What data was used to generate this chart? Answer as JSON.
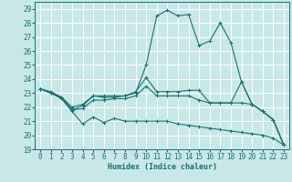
{
  "xlabel": "Humidex (Indice chaleur)",
  "xlim": [
    -0.5,
    23.5
  ],
  "ylim": [
    19,
    29.5
  ],
  "yticks": [
    19,
    20,
    21,
    22,
    23,
    24,
    25,
    26,
    27,
    28,
    29
  ],
  "xticks": [
    0,
    1,
    2,
    3,
    4,
    5,
    6,
    7,
    8,
    9,
    10,
    11,
    12,
    13,
    14,
    15,
    16,
    17,
    18,
    19,
    20,
    21,
    22,
    23
  ],
  "bg_color": "#c8e8e8",
  "grid_color": "#ffffff",
  "line_color": "#1a7070",
  "line_width": 0.8,
  "marker": "+",
  "marker_size": 3,
  "lines": [
    {
      "x": [
        0,
        1,
        2,
        3,
        4,
        5,
        6,
        7,
        8,
        9,
        10,
        11,
        12,
        13,
        14,
        15,
        16,
        17,
        18,
        19,
        20,
        21,
        22,
        23
      ],
      "y": [
        23.3,
        23.1,
        22.7,
        21.8,
        22.1,
        22.8,
        22.8,
        22.8,
        22.8,
        23.0,
        25.0,
        28.5,
        28.9,
        28.5,
        28.6,
        26.4,
        26.7,
        28.0,
        26.6,
        23.8,
        22.2,
        21.7,
        21.1,
        19.3
      ]
    },
    {
      "x": [
        0,
        1,
        2,
        3,
        4,
        5,
        6,
        7,
        8,
        9,
        10,
        11,
        12,
        13,
        14,
        15,
        16,
        17,
        18,
        19,
        20,
        21,
        22,
        23
      ],
      "y": [
        23.3,
        23.0,
        22.7,
        22.0,
        22.2,
        22.8,
        22.7,
        22.7,
        22.8,
        23.1,
        24.1,
        23.1,
        23.1,
        23.1,
        23.2,
        23.2,
        22.3,
        22.3,
        22.3,
        23.8,
        22.2,
        21.7,
        21.1,
        19.3
      ]
    },
    {
      "x": [
        0,
        1,
        2,
        3,
        4,
        5,
        6,
        7,
        8,
        9,
        10,
        11,
        12,
        13,
        14,
        15,
        16,
        17,
        18,
        19,
        20,
        21,
        22,
        23
      ],
      "y": [
        23.3,
        23.0,
        22.7,
        21.8,
        21.9,
        22.5,
        22.5,
        22.6,
        22.6,
        22.8,
        23.5,
        22.8,
        22.8,
        22.8,
        22.8,
        22.5,
        22.3,
        22.3,
        22.3,
        22.3,
        22.2,
        21.7,
        21.1,
        19.3
      ]
    },
    {
      "x": [
        0,
        1,
        2,
        3,
        4,
        5,
        6,
        7,
        8,
        9,
        10,
        11,
        12,
        13,
        14,
        15,
        16,
        17,
        18,
        19,
        20,
        21,
        22,
        23
      ],
      "y": [
        23.3,
        23.0,
        22.6,
        21.7,
        20.8,
        21.3,
        20.9,
        21.2,
        21.0,
        21.0,
        21.0,
        21.0,
        21.0,
        20.8,
        20.7,
        20.6,
        20.5,
        20.4,
        20.3,
        20.2,
        20.1,
        20.0,
        19.8,
        19.3
      ]
    }
  ]
}
